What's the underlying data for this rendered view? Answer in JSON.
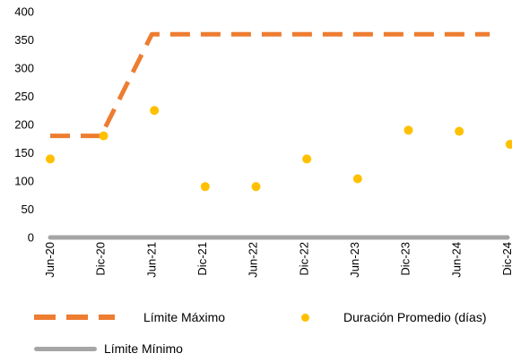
{
  "chart_data": {
    "type": "line",
    "categories": [
      "Jun-20",
      "Dic-20",
      "Jun-21",
      "Dic-21",
      "Jun-22",
      "Dic-22",
      "Jun-23",
      "Dic-23",
      "Jun-24",
      "Dic-24"
    ],
    "ylim": [
      0,
      400
    ],
    "yticks": [
      "0",
      "50",
      "100",
      "150",
      "200",
      "250",
      "300",
      "350",
      "400"
    ],
    "grid": false,
    "legend_position": "bottom",
    "series": [
      {
        "name": "Límite Máximo",
        "style": "dashed-line",
        "color": "#ED7D31",
        "points": [
          [
            0,
            180
          ],
          [
            1,
            180
          ],
          [
            2,
            360
          ],
          [
            3,
            360
          ],
          [
            4,
            360
          ],
          [
            5,
            360
          ],
          [
            6,
            360
          ],
          [
            7,
            360
          ],
          [
            8,
            360
          ],
          [
            8.65,
            360
          ]
        ]
      },
      {
        "name": "Duración Promedio (días)",
        "style": "markers",
        "color": "#FFC000",
        "points": [
          [
            0,
            139
          ],
          [
            1.05,
            180
          ],
          [
            2.05,
            225
          ],
          [
            3.05,
            90
          ],
          [
            4.05,
            90
          ],
          [
            5.05,
            139
          ],
          [
            6.05,
            104
          ],
          [
            7.05,
            190
          ],
          [
            8.05,
            188
          ],
          [
            9.05,
            165
          ]
        ]
      },
      {
        "name": "Límite Mínimo",
        "style": "solid-line",
        "color": "#A5A5A5",
        "points": [
          [
            0,
            0
          ],
          [
            9,
            0
          ]
        ]
      }
    ]
  }
}
